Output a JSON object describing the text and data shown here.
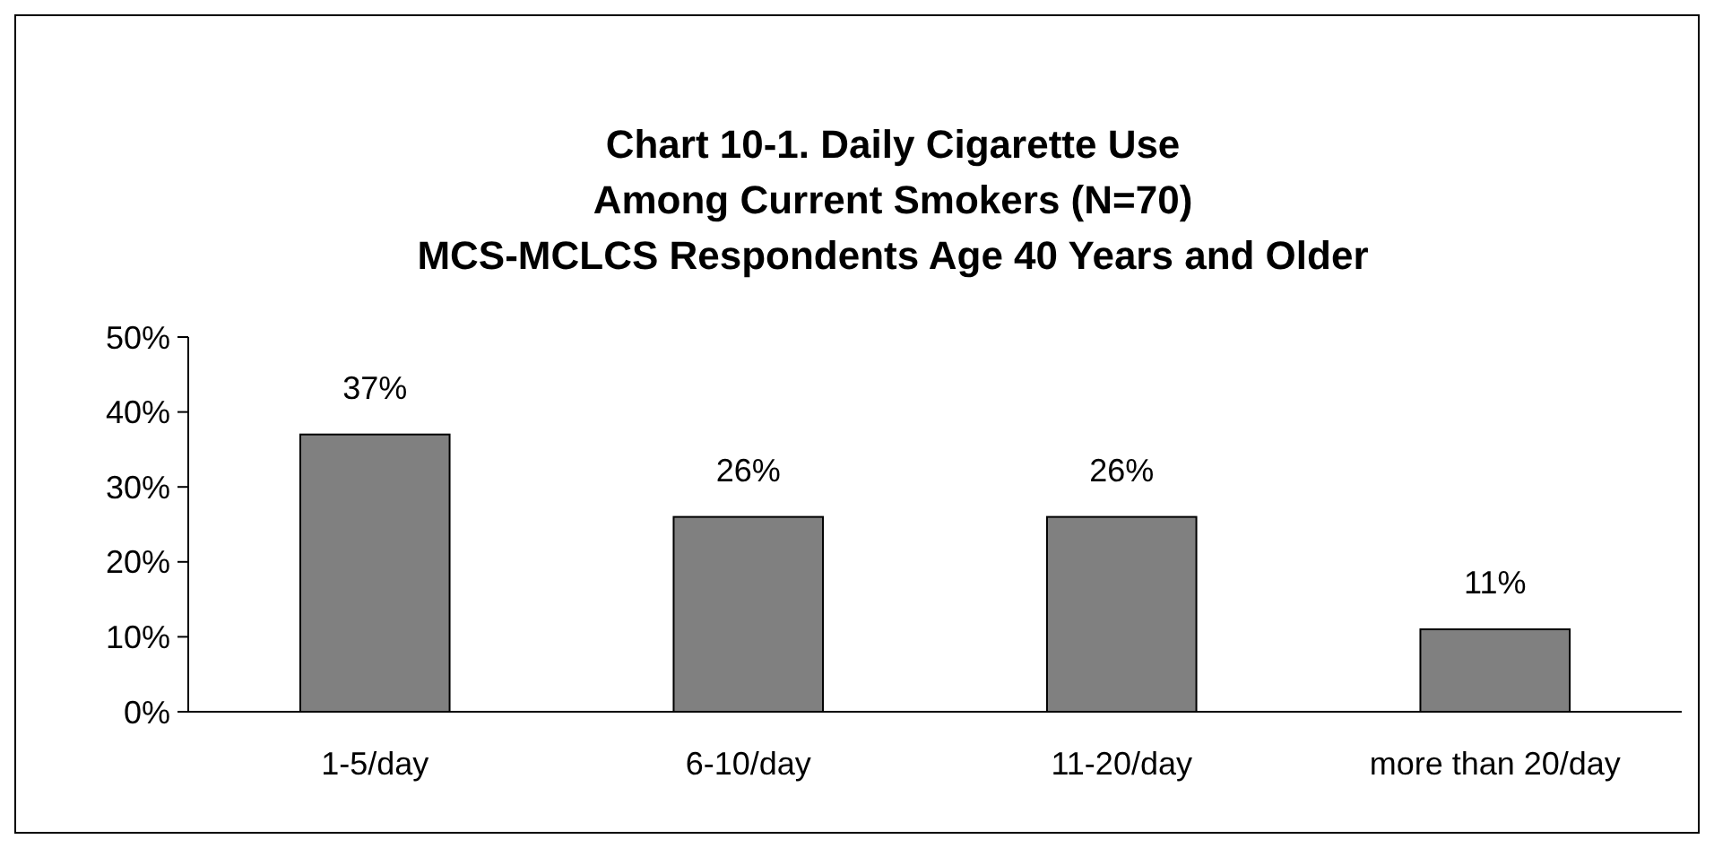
{
  "chart_data": {
    "type": "bar",
    "title": "Chart 10-1. Daily Cigarette Use\nAmong Current Smokers (N=70)\nMCS-MCLCS Respondents Age 40 Years and Older",
    "categories": [
      "1-5/day",
      "6-10/day",
      "11-20/day",
      "more than 20/day"
    ],
    "values": [
      37,
      26,
      26,
      11
    ],
    "color": "#808080",
    "ylim": [
      0,
      50
    ],
    "yticks": [
      {
        "value": 0,
        "label": "0%"
      },
      {
        "value": 10,
        "label": "10%"
      },
      {
        "value": 20,
        "label": "20%"
      },
      {
        "value": 30,
        "label": "30%"
      },
      {
        "value": 40,
        "label": "40%"
      },
      {
        "value": 50,
        "label": "50%"
      }
    ],
    "value_labels": [
      "37%",
      "26%",
      "26%",
      "11%"
    ],
    "grid": false
  }
}
